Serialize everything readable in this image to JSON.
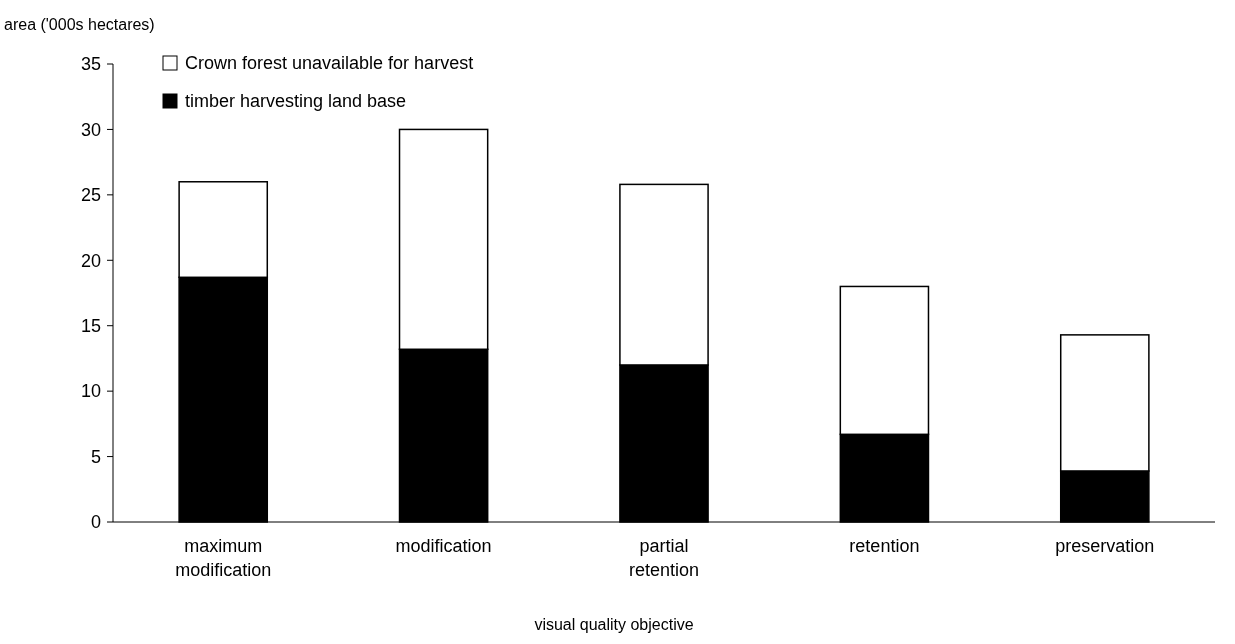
{
  "chart_data": {
    "type": "bar",
    "stacked": true,
    "ylabel": "area ('000s hectares)",
    "xlabel": "visual quality objective",
    "categories": [
      "maximum modification",
      "modification",
      "partial retention",
      "retention",
      "preservation"
    ],
    "series": [
      {
        "name": "timber harvesting land base",
        "color": "#000000",
        "values": [
          18.7,
          13.2,
          12.0,
          6.7,
          3.9
        ]
      },
      {
        "name": "Crown forest unavailable for harvest",
        "color": "#ffffff",
        "values": [
          7.3,
          16.8,
          13.8,
          11.3,
          10.4
        ]
      }
    ],
    "ylim": [
      0,
      35
    ],
    "yticks": [
      0,
      5,
      10,
      15,
      20,
      25,
      30,
      35
    ],
    "legend": "top left"
  }
}
